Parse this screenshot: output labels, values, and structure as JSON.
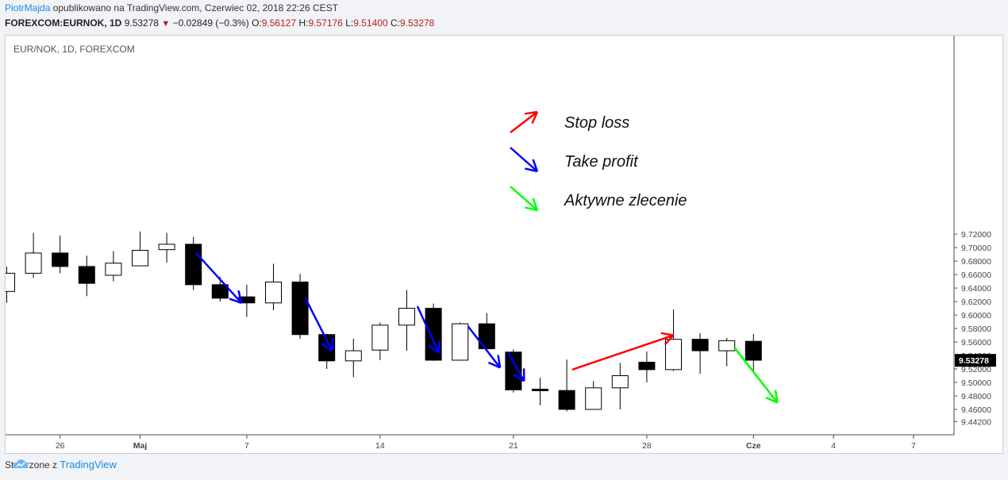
{
  "header": {
    "author": "PiotrMajda",
    "published": "opublikowano na TradingView.com, Czerwiec 02, 2018 22:26 CEST",
    "symbol": "FOREXCOM:EURNOK, 1D",
    "price": "9.53278",
    "change": "−0.02849 (−0.3%)",
    "o_label": "O:",
    "o_value": "9.56127",
    "h_label": "H:",
    "h_value": "9.57176",
    "l_label": "L:",
    "l_value": "9.51400",
    "c_label": "C:",
    "c_value": "9.53278"
  },
  "footer": {
    "created": "Stworzone z",
    "brand": "TradingView"
  },
  "colors": {
    "blue_arrow": "#0000ff",
    "red_arrow": "#ff0000",
    "green_arrow": "#00ff00",
    "brand": "#1e88e5",
    "value_red": "#b71c1c"
  },
  "chart_data": {
    "type": "candlestick",
    "title": "EUR/NOK, 1D, FOREXCOM",
    "ylim": [
      9.442,
      9.73
    ],
    "y_ticks": [
      "9.72000",
      "9.70000",
      "9.68000",
      "9.66000",
      "9.64000",
      "9.62000",
      "9.60000",
      "9.58000",
      "9.56000",
      "9.54000",
      "9.52000",
      "9.50000",
      "9.48000",
      "9.46000",
      "9.44200"
    ],
    "x_ticks": [
      {
        "label": "26",
        "day": 2
      },
      {
        "label": "Maj",
        "day": 5
      },
      {
        "label": "7",
        "day": 9
      },
      {
        "label": "14",
        "day": 14
      },
      {
        "label": "21",
        "day": 19
      },
      {
        "label": "28",
        "day": 24
      },
      {
        "label": "Cze",
        "day": 28
      },
      {
        "label": "4",
        "day": 31
      },
      {
        "label": "7",
        "day": 34
      }
    ],
    "last_price_label": "9.53278",
    "candles": [
      {
        "day": 0,
        "o": 9.635,
        "h": 9.672,
        "l": 9.618,
        "c": 9.662
      },
      {
        "day": 1,
        "o": 9.662,
        "h": 9.722,
        "l": 9.655,
        "c": 9.692
      },
      {
        "day": 2,
        "o": 9.692,
        "h": 9.718,
        "l": 9.662,
        "c": 9.672
      },
      {
        "day": 3,
        "o": 9.672,
        "h": 9.688,
        "l": 9.628,
        "c": 9.647
      },
      {
        "day": 4,
        "o": 9.659,
        "h": 9.695,
        "l": 9.65,
        "c": 9.677
      },
      {
        "day": 5,
        "o": 9.673,
        "h": 9.724,
        "l": 9.673,
        "c": 9.696
      },
      {
        "day": 6,
        "o": 9.697,
        "h": 9.722,
        "l": 9.678,
        "c": 9.705
      },
      {
        "day": 7,
        "o": 9.705,
        "h": 9.716,
        "l": 9.637,
        "c": 9.645
      },
      {
        "day": 8,
        "o": 9.645,
        "h": 9.657,
        "l": 9.62,
        "c": 9.625
      },
      {
        "day": 9,
        "o": 9.627,
        "h": 9.645,
        "l": 9.597,
        "c": 9.618
      },
      {
        "day": 10,
        "o": 9.618,
        "h": 9.676,
        "l": 9.607,
        "c": 9.649
      },
      {
        "day": 11,
        "o": 9.649,
        "h": 9.661,
        "l": 9.565,
        "c": 9.571
      },
      {
        "day": 12,
        "o": 9.571,
        "h": 9.572,
        "l": 9.52,
        "c": 9.532
      },
      {
        "day": 13,
        "o": 9.532,
        "h": 9.565,
        "l": 9.508,
        "c": 9.547
      },
      {
        "day": 14,
        "o": 9.548,
        "h": 9.589,
        "l": 9.533,
        "c": 9.585
      },
      {
        "day": 15,
        "o": 9.585,
        "h": 9.637,
        "l": 9.547,
        "c": 9.61
      },
      {
        "day": 16,
        "o": 9.61,
        "h": 9.617,
        "l": 9.532,
        "c": 9.533
      },
      {
        "day": 17,
        "o": 9.533,
        "h": 9.589,
        "l": 9.533,
        "c": 9.587
      },
      {
        "day": 18,
        "o": 9.587,
        "h": 9.603,
        "l": 9.549,
        "c": 9.55
      },
      {
        "day": 19,
        "o": 9.545,
        "h": 9.549,
        "l": 9.485,
        "c": 9.489
      },
      {
        "day": 20,
        "o": 9.49,
        "h": 9.507,
        "l": 9.466,
        "c": 9.488
      },
      {
        "day": 21,
        "o": 9.488,
        "h": 9.534,
        "l": 9.457,
        "c": 9.46
      },
      {
        "day": 22,
        "o": 9.46,
        "h": 9.502,
        "l": 9.46,
        "c": 9.492
      },
      {
        "day": 23,
        "o": 9.492,
        "h": 9.529,
        "l": 9.46,
        "c": 9.51
      },
      {
        "day": 24,
        "o": 9.53,
        "h": 9.546,
        "l": 9.5,
        "c": 9.519
      },
      {
        "day": 25,
        "o": 9.519,
        "h": 9.608,
        "l": 9.517,
        "c": 9.564
      },
      {
        "day": 26,
        "o": 9.564,
        "h": 9.573,
        "l": 9.513,
        "c": 9.547
      },
      {
        "day": 27,
        "o": 9.547,
        "h": 9.566,
        "l": 9.524,
        "c": 9.562
      },
      {
        "day": 28,
        "o": 9.561,
        "h": 9.572,
        "l": 9.514,
        "c": 9.533
      }
    ],
    "legend": [
      {
        "label": "Stop loss",
        "color": "#ff0000",
        "dir": "up"
      },
      {
        "label": "Take profit",
        "color": "#0000ff",
        "dir": "down"
      },
      {
        "label": "Aktywne zlecenie",
        "color": "#00ff00",
        "dir": "down"
      }
    ],
    "arrows": [
      {
        "color": "#0000ff",
        "x1": 7.1,
        "y1": 9.692,
        "x2": 8.8,
        "y2": 9.618
      },
      {
        "color": "#0000ff",
        "x1": 11.2,
        "y1": 9.625,
        "x2": 12.2,
        "y2": 9.547
      },
      {
        "color": "#0000ff",
        "x1": 15.4,
        "y1": 9.613,
        "x2": 16.2,
        "y2": 9.544
      },
      {
        "color": "#0000ff",
        "x1": 17.3,
        "y1": 9.583,
        "x2": 18.5,
        "y2": 9.522
      },
      {
        "color": "#0000ff",
        "x1": 18.8,
        "y1": 9.544,
        "x2": 19.4,
        "y2": 9.502
      },
      {
        "color": "#ff0000",
        "x1": 21.2,
        "y1": 9.519,
        "x2": 25.0,
        "y2": 9.57
      },
      {
        "color": "#00ff00",
        "x1": 27.3,
        "y1": 9.551,
        "x2": 28.9,
        "y2": 9.47
      }
    ]
  }
}
